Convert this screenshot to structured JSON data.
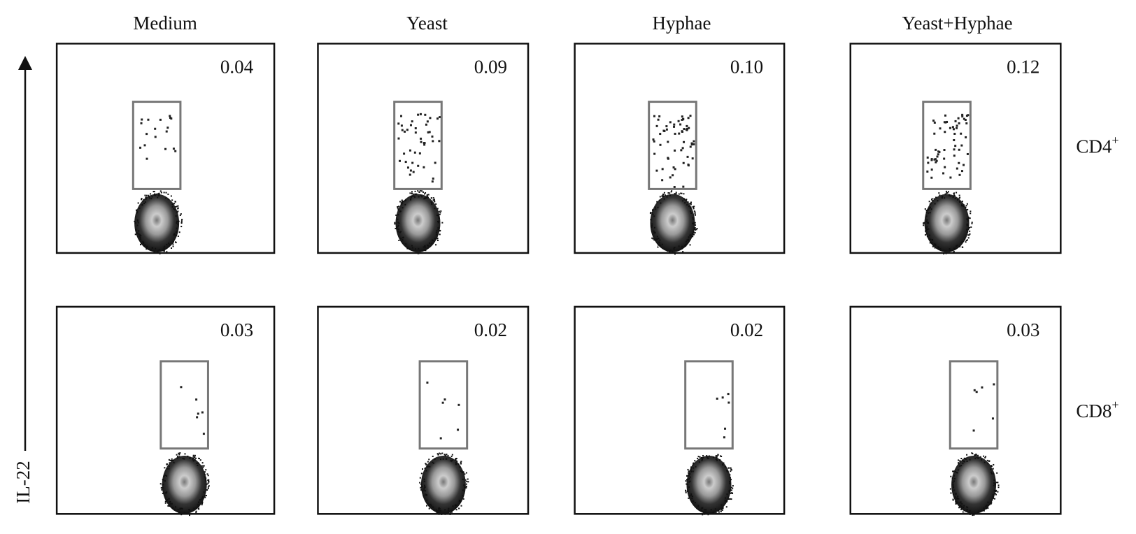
{
  "columns": [
    "Medium",
    "Yeast",
    "Hyphae",
    "Yeast+Hyphae"
  ],
  "rows": [
    {
      "base": "CD4",
      "sup": "+"
    },
    {
      "base": "CD8",
      "sup": "+"
    }
  ],
  "axis_label": "IL-22",
  "panels": [
    [
      "0.04",
      "0.09",
      "0.10",
      "0.12"
    ],
    [
      "0.03",
      "0.02",
      "0.02",
      "0.03"
    ]
  ]
}
